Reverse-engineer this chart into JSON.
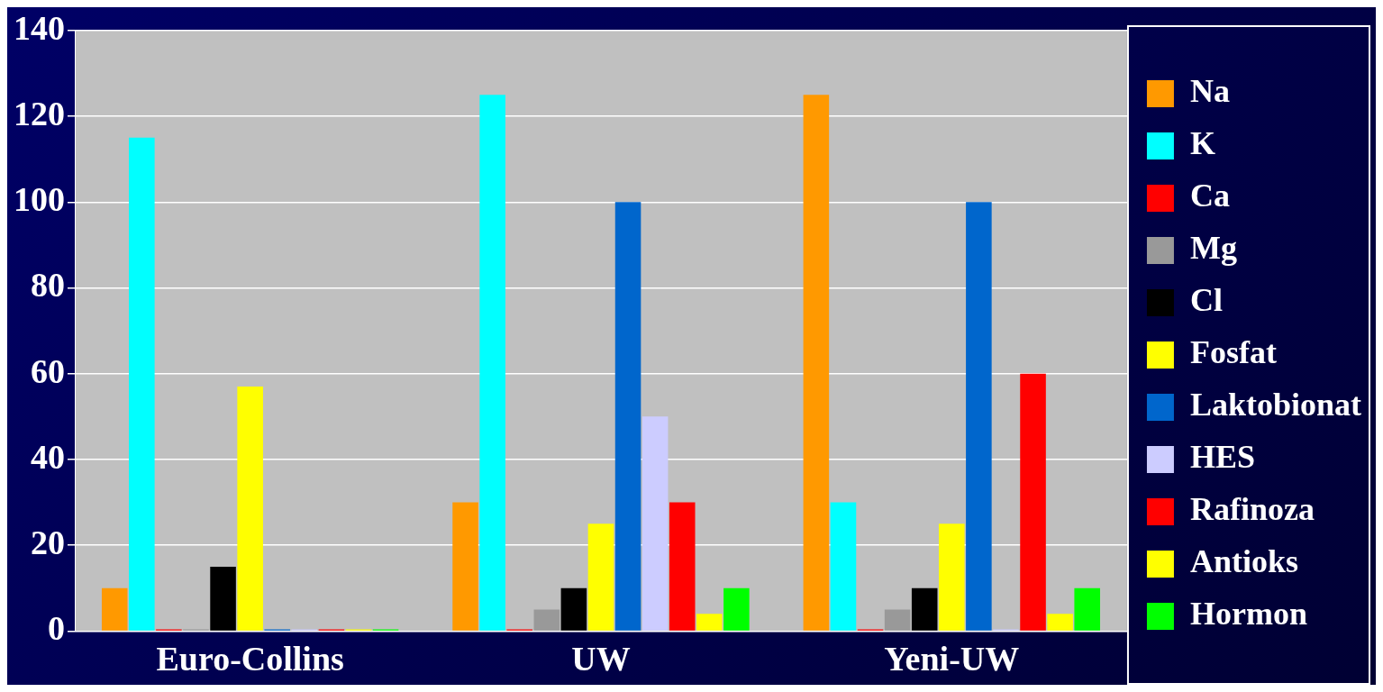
{
  "chart_data": {
    "type": "bar",
    "categories": [
      "Euro-Collins",
      "UW",
      "Yeni-UW"
    ],
    "series": [
      {
        "name": "Na",
        "color": "#ff9900",
        "values": [
          10,
          30,
          125
        ]
      },
      {
        "name": "K",
        "color": "#00ffff",
        "values": [
          115,
          125,
          30
        ]
      },
      {
        "name": "Ca",
        "color": "#ff0000",
        "values": [
          0,
          0,
          0
        ]
      },
      {
        "name": "Mg",
        "color": "#999999",
        "values": [
          0,
          5,
          5
        ]
      },
      {
        "name": "Cl",
        "color": "#000000",
        "values": [
          15,
          10,
          10
        ]
      },
      {
        "name": "Fosfat",
        "color": "#ffff00",
        "values": [
          57,
          25,
          25
        ]
      },
      {
        "name": "Laktobionat",
        "color": "#0066cc",
        "values": [
          0,
          100,
          100
        ]
      },
      {
        "name": "HES",
        "color": "#ccccff",
        "values": [
          0,
          50,
          0
        ]
      },
      {
        "name": "Rafinoza",
        "color": "#ff0000",
        "values": [
          0,
          30,
          60
        ]
      },
      {
        "name": "Antioks",
        "color": "#ffff00",
        "values": [
          0,
          4,
          4
        ]
      },
      {
        "name": "Hormon",
        "color": "#00ff00",
        "values": [
          0,
          10,
          10
        ]
      }
    ],
    "ylim": [
      0,
      140
    ],
    "yticks": [
      0,
      20,
      40,
      60,
      80,
      100,
      120,
      140
    ],
    "grid": "y",
    "legend": "right"
  }
}
